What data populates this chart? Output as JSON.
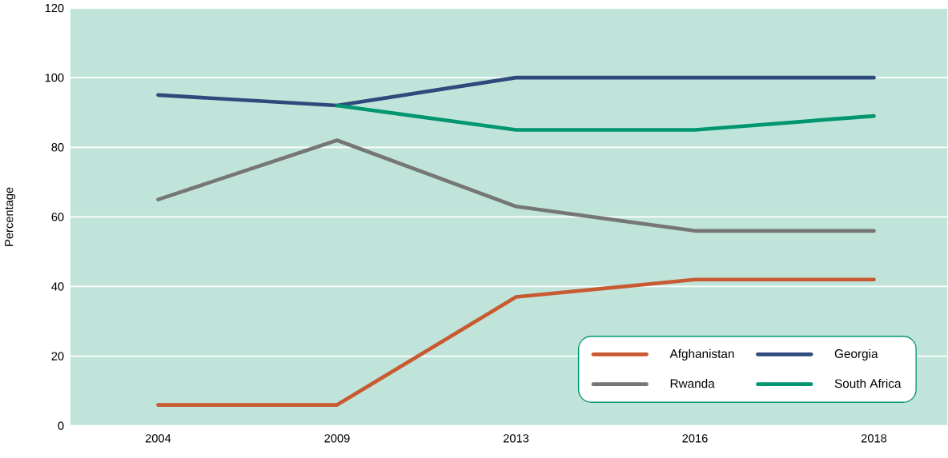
{
  "chart_data": {
    "type": "line",
    "ylabel": "Percentage",
    "categories": [
      "2004",
      "2009",
      "2013",
      "2016",
      "2018"
    ],
    "series": [
      {
        "name": "Afghanistan",
        "color": "#c85a32",
        "values": [
          6,
          6,
          37,
          42,
          42
        ]
      },
      {
        "name": "Georgia",
        "color": "#2e4a7d",
        "values": [
          95,
          92,
          100,
          100,
          100
        ]
      },
      {
        "name": "Rwanda",
        "color": "#767676",
        "values": [
          65,
          82,
          63,
          56,
          56
        ]
      },
      {
        "name": "South Africa",
        "color": "#009670",
        "values": [
          null,
          92,
          85,
          85,
          89
        ]
      }
    ],
    "ylim": [
      0,
      120
    ],
    "yticks": [
      0,
      20,
      40,
      60,
      80,
      100,
      120
    ],
    "grid": "y",
    "legend": "bottom right",
    "marker": "none",
    "line_style": "solid"
  }
}
